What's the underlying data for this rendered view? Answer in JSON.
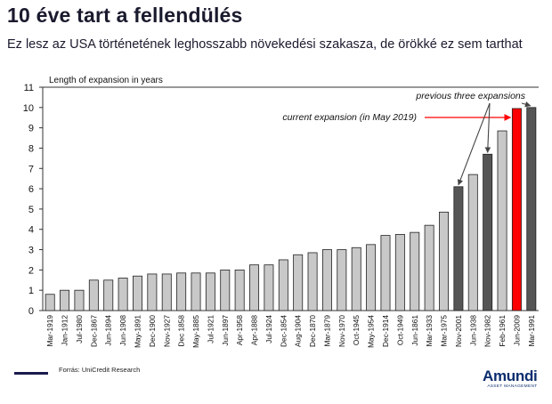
{
  "header": {
    "title": "10 éve tart a fellendülés",
    "subtitle": "Ez lesz az USA történetének leghosszabb növekedési szakasza, de örökké ez sem tarthat"
  },
  "footer": {
    "source": "Forrás: UniCredit Research",
    "brand": "Amundi",
    "brand_tagline": "ASSET MANAGEMENT"
  },
  "colors": {
    "light_bar": "#c8c8c8",
    "dark_bar": "#555555",
    "current_bar": "#ff0000",
    "annotation_arrow_current": "#ff0000",
    "annotation_arrow_previous": "#444444"
  },
  "chart_data": {
    "type": "bar",
    "title": "",
    "ylabel": "Length of expansion in years",
    "xlabel": "",
    "ylim": [
      0,
      11
    ],
    "yticks": [
      0,
      1,
      2,
      3,
      4,
      5,
      6,
      7,
      8,
      9,
      10,
      11
    ],
    "grid": false,
    "categories": [
      "Mar-1919",
      "Jan-1912",
      "Jul-1980",
      "Dec-1867",
      "Jun-1894",
      "Jun-1908",
      "May-1891",
      "Dec-1900",
      "Nov-1927",
      "Dec 1858",
      "May-1885",
      "Jul-1921",
      "Jun-1897",
      "Apr-1958",
      "Apr-1888",
      "Jul-1924",
      "Dec-1854",
      "Aug-1904",
      "Dec-1870",
      "Mar-1879",
      "Nov-1970",
      "Oct-1945",
      "May-1954",
      "Dec-1914",
      "Oct-1949",
      "Jun-1861",
      "Mar-1933",
      "Mar-1975",
      "Nov-2001",
      "Jun-1938",
      "Nov-1982",
      "Feb-1961",
      "Jun-2009",
      "Mar-1991"
    ],
    "values": [
      0.8,
      1.0,
      1.0,
      1.5,
      1.5,
      1.6,
      1.7,
      1.8,
      1.8,
      1.85,
      1.85,
      1.85,
      2.0,
      2.0,
      2.25,
      2.25,
      2.5,
      2.75,
      2.85,
      3.0,
      3.0,
      3.1,
      3.25,
      3.7,
      3.75,
      3.85,
      4.2,
      4.85,
      6.1,
      6.7,
      7.7,
      8.85,
      9.95,
      10.0
    ],
    "highlight": [
      "normal",
      "normal",
      "normal",
      "normal",
      "normal",
      "normal",
      "normal",
      "normal",
      "normal",
      "normal",
      "normal",
      "normal",
      "normal",
      "normal",
      "normal",
      "normal",
      "normal",
      "normal",
      "normal",
      "normal",
      "normal",
      "normal",
      "normal",
      "normal",
      "normal",
      "normal",
      "normal",
      "normal",
      "previous",
      "normal",
      "previous",
      "normal",
      "current",
      "previous"
    ],
    "annotations": {
      "current": "current expansion (in May 2019)",
      "previous": "previous three expansions"
    }
  }
}
